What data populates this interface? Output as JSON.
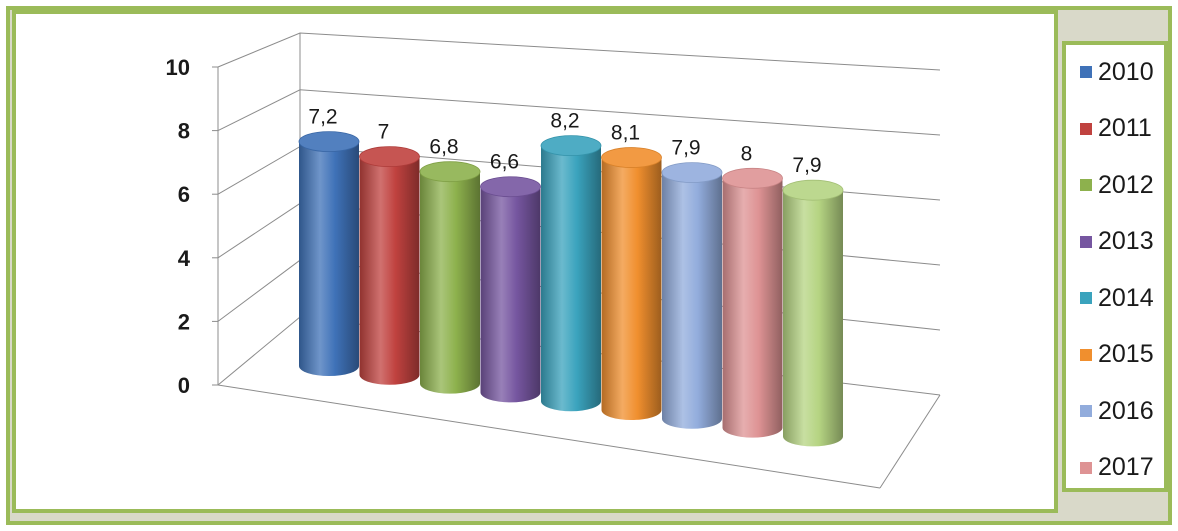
{
  "chart_data": {
    "type": "bar",
    "style": "3d-cylinder",
    "categories": [
      "2010",
      "2011",
      "2012",
      "2013",
      "2014",
      "2015",
      "2016",
      "2017",
      ""
    ],
    "values": [
      7.2,
      7,
      6.8,
      6.6,
      8.2,
      8.1,
      7.9,
      8,
      7.9
    ],
    "data_labels": [
      "7,2",
      "7",
      "6,8",
      "6,6",
      "8,2",
      "8,1",
      "7,9",
      "8",
      "7,9"
    ],
    "colors": [
      "#3f72b8",
      "#c0423f",
      "#8db14d",
      "#7656a0",
      "#3aa3bd",
      "#f08f2e",
      "#92acdc",
      "#de9394",
      "#b5d482"
    ],
    "ylim": [
      0,
      10
    ],
    "yticks": [
      "0",
      "2",
      "4",
      "6",
      "8",
      "10"
    ],
    "grid": true,
    "legend": {
      "position": "right",
      "entries": [
        "2010",
        "2011",
        "2012",
        "2013",
        "2014",
        "2015",
        "2016",
        "2017"
      ]
    },
    "title": "",
    "xlabel": "",
    "ylabel": ""
  }
}
